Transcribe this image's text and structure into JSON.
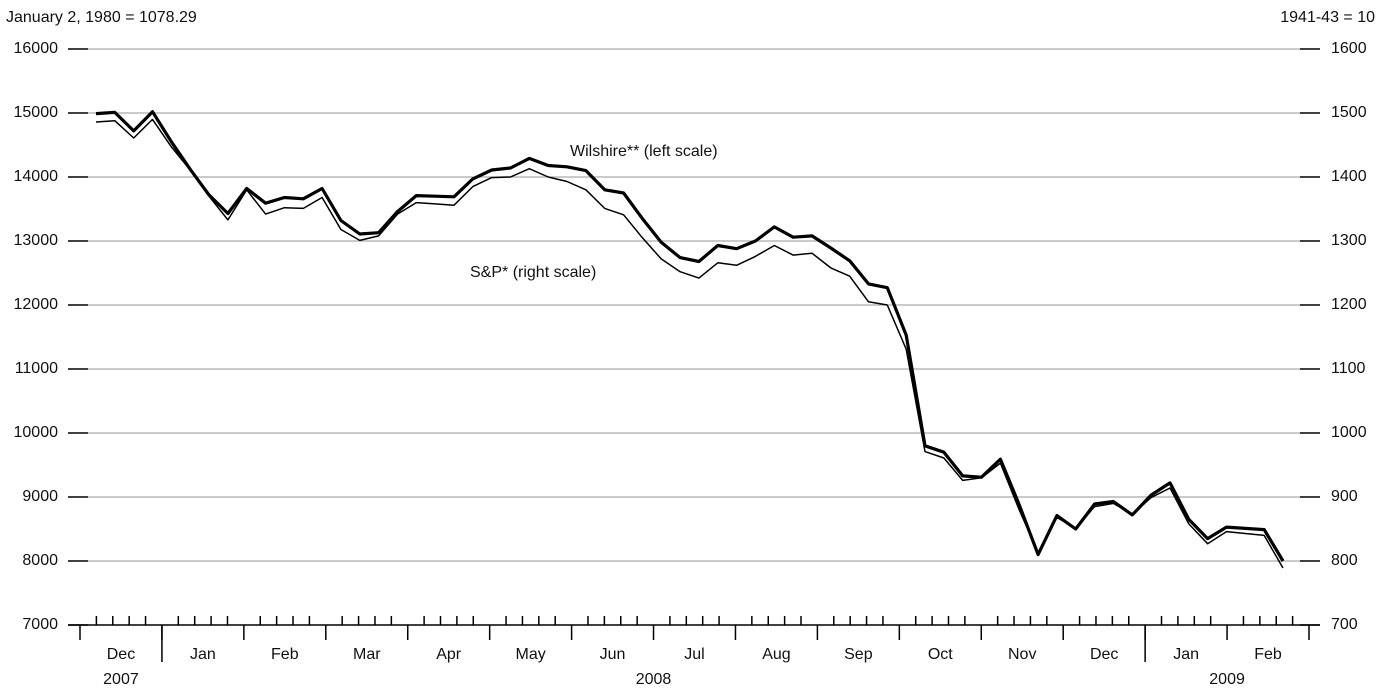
{
  "chart_data": {
    "type": "line",
    "y_axis_note": "January 2, 1980 = 1078.29",
    "y2_axis_note": "1941-43 = 10",
    "categories": [
      null,
      null,
      null,
      null,
      null,
      null,
      null,
      null,
      null,
      null,
      null,
      null,
      null,
      null,
      null,
      null,
      null,
      null,
      null,
      null,
      null,
      null,
      null,
      null,
      null,
      null,
      null,
      null,
      null,
      null,
      null,
      null,
      null,
      null,
      null,
      null,
      null,
      null,
      null,
      null,
      null,
      null,
      null,
      null,
      null,
      null,
      null,
      null,
      null,
      null,
      null,
      null,
      null,
      null,
      null,
      null,
      null,
      null,
      null,
      null,
      null,
      null,
      null,
      null
    ],
    "months": [
      "Dec",
      "Jan",
      "Feb",
      "Mar",
      "Apr",
      "May",
      "Jun",
      "Jul",
      "Aug",
      "Sep",
      "Oct",
      "Nov",
      "Dec",
      "Jan",
      "Feb"
    ],
    "years": [
      "2007",
      "2008",
      "2009"
    ],
    "series": [
      {
        "name": "Wilshire** (left scale)",
        "color": "#000000",
        "axis": "y",
        "values": [
          14990,
          15010,
          14720,
          15020,
          14550,
          14120,
          13720,
          13430,
          13820,
          13590,
          13680,
          13660,
          13820,
          13320,
          13110,
          13130,
          13460,
          13710,
          13700,
          13690,
          13970,
          14110,
          14140,
          14290,
          14180,
          14160,
          14100,
          13800,
          13750,
          13350,
          12980,
          12740,
          12680,
          12930,
          12880,
          13000,
          13220,
          13060,
          13080,
          12890,
          12690,
          12330,
          12270,
          11530,
          9800,
          9700,
          9330,
          9310,
          9590,
          8880,
          8100,
          8710,
          8500,
          8890,
          8930,
          8720,
          9030,
          9220,
          8650,
          8350,
          8530,
          8510,
          8490,
          8000
        ]
      },
      {
        "name": "S&P* (right scale)",
        "color": "#000000",
        "axis": "y2",
        "values": [
          1486,
          1488,
          1461,
          1490,
          1447,
          1411,
          1370,
          1333,
          1380,
          1342,
          1352,
          1351,
          1368,
          1318,
          1301,
          1308,
          1342,
          1360,
          1358,
          1356,
          1385,
          1399,
          1400,
          1413,
          1400,
          1393,
          1380,
          1351,
          1341,
          1305,
          1272,
          1252,
          1242,
          1266,
          1262,
          1276,
          1293,
          1278,
          1281,
          1258,
          1245,
          1205,
          1200,
          1131,
          971,
          961,
          926,
          930,
          953,
          880,
          813,
          868,
          851,
          885,
          890,
          873,
          899,
          914,
          858,
          827,
          846,
          843,
          840,
          789
        ]
      }
    ],
    "ylim": [
      7000,
      16000
    ],
    "yticks": [
      7000,
      8000,
      9000,
      10000,
      11000,
      12000,
      13000,
      14000,
      15000,
      16000
    ],
    "y2lim": [
      700,
      1600
    ],
    "y2ticks": [
      700,
      800,
      900,
      1000,
      1100,
      1200,
      1300,
      1400,
      1500,
      1600
    ],
    "grid": true
  }
}
